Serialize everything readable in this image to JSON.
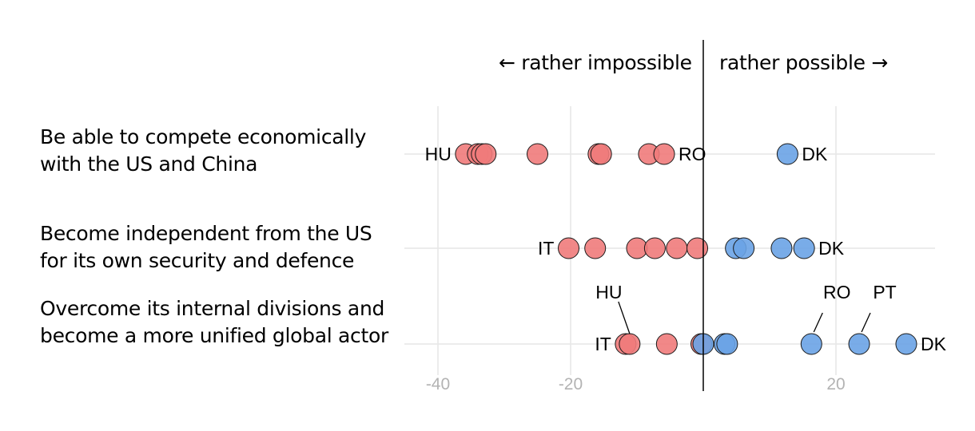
{
  "chart_data": {
    "type": "scatter",
    "direction_labels": {
      "left": "← rather impossible",
      "right": "rather possible →"
    },
    "x_ticks": [
      -40,
      -20,
      20
    ],
    "xlim": [
      -40.5,
      34
    ],
    "grid": true,
    "colors": {
      "negative": "#f07b7b",
      "positive": "#6aa3e6"
    },
    "rows": [
      {
        "label": "Be able to compete economically with the US and China",
        "points": [
          -35.8,
          -34,
          -33.4,
          -32.8,
          -25,
          -15.8,
          -15.4,
          -8.2,
          -5.9,
          12.7
        ],
        "annotations": [
          {
            "text": "HU",
            "x": -35.8,
            "side": "left"
          },
          {
            "text": "RO",
            "x": -5.9,
            "side": "right"
          },
          {
            "text": "DK",
            "x": 12.7,
            "side": "right"
          }
        ]
      },
      {
        "label": "Become independent from the US for its own security and defence",
        "points": [
          -20.3,
          -16.3,
          -10,
          -7.3,
          -4,
          -0.9,
          4.9,
          6.1,
          11.8,
          15.2
        ],
        "annotations": [
          {
            "text": "IT",
            "x": -20.3,
            "side": "left"
          },
          {
            "text": "DK",
            "x": 15.2,
            "side": "right"
          }
        ]
      },
      {
        "label": "Overcome its internal divisions and become a more unified global actor",
        "points": [
          -11.7,
          -11.1,
          -5.5,
          -0.3,
          0,
          3.2,
          3.6,
          16.3,
          23.5,
          30.6
        ],
        "annotations": [
          {
            "text": "IT",
            "x": -11.7,
            "side": "left"
          },
          {
            "text": "HU",
            "x": -11.1,
            "side": "above-left"
          },
          {
            "text": "RO",
            "x": 16.3,
            "side": "above-right"
          },
          {
            "text": "PT",
            "x": 23.5,
            "side": "above-right"
          },
          {
            "text": "DK",
            "x": 30.6,
            "side": "right"
          }
        ]
      }
    ]
  }
}
